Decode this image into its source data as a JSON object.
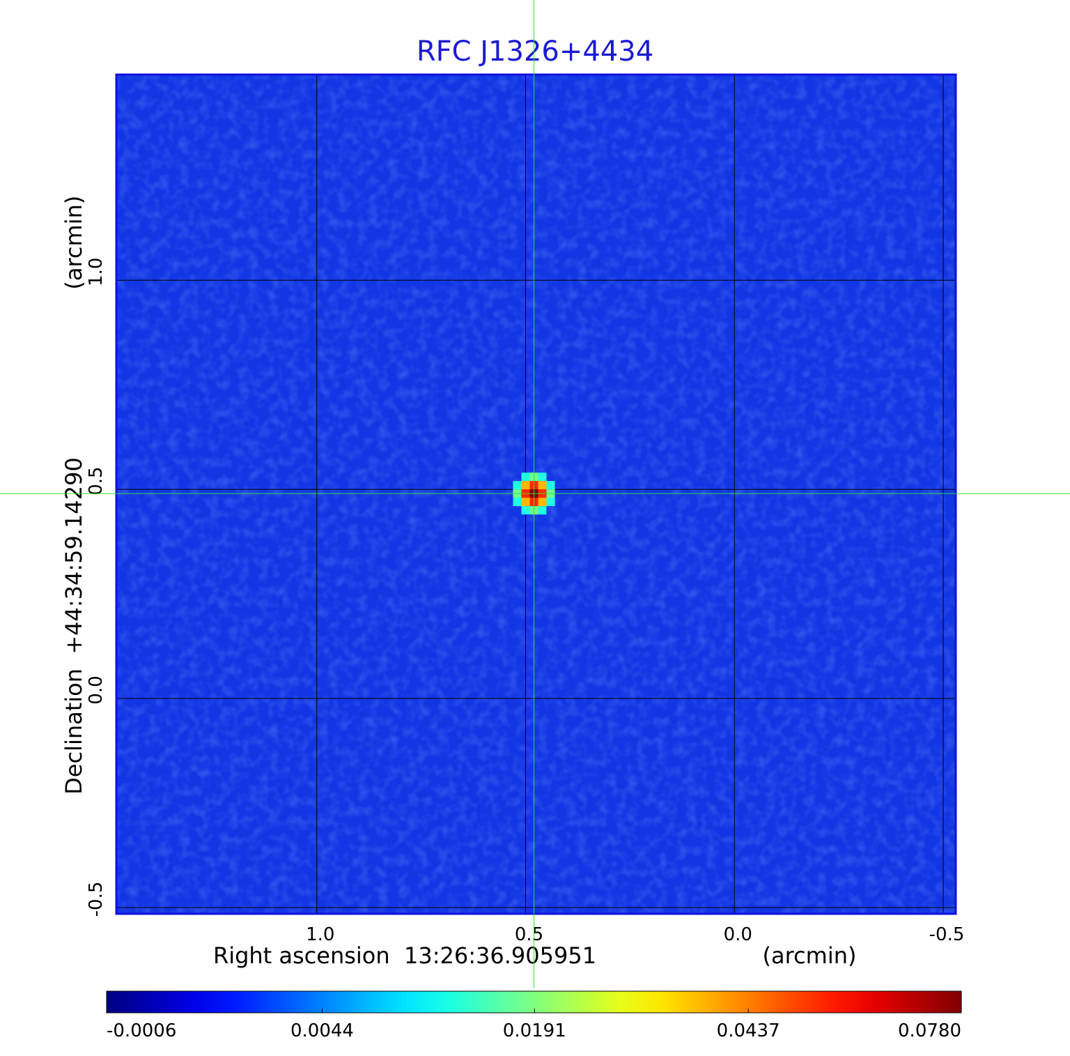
{
  "chart_data": {
    "type": "image",
    "title": "RFC J1326+4434",
    "xlabel": "Right ascension  13:26:36.905951",
    "xunit": "(arcmin)",
    "ylabel": "Declination  +44:34:59.14290",
    "yunit": "(arcmin)",
    "xlim": [
      1.48,
      -0.53
    ],
    "ylim": [
      -0.515,
      1.492
    ],
    "xticks": [
      {
        "value": 1.0,
        "label": "1.0"
      },
      0.5,
      {
        "value": 0.0,
        "label": "0.0"
      },
      -0.5
    ],
    "yticks": [
      {
        "value": -0.5,
        "label": "-0.5"
      },
      {
        "value": 0.0,
        "label": "0.0"
      },
      0.5,
      {
        "value": 1.0,
        "label": "1.0"
      }
    ],
    "grid": true,
    "colormap": "jet",
    "color_scale": "sqrt",
    "clim": [
      -0.0006,
      0.078
    ],
    "cticks": [
      -0.0006,
      0.0044,
      0.0191,
      0.0437,
      {
        "value": 0.078,
        "label": "0.0780"
      }
    ],
    "source": {
      "ra_offset": 0.48,
      "dec_offset": 0.49,
      "peak": 0.078
    },
    "crosshair": {
      "x": 0.48,
      "y": 0.49
    }
  }
}
